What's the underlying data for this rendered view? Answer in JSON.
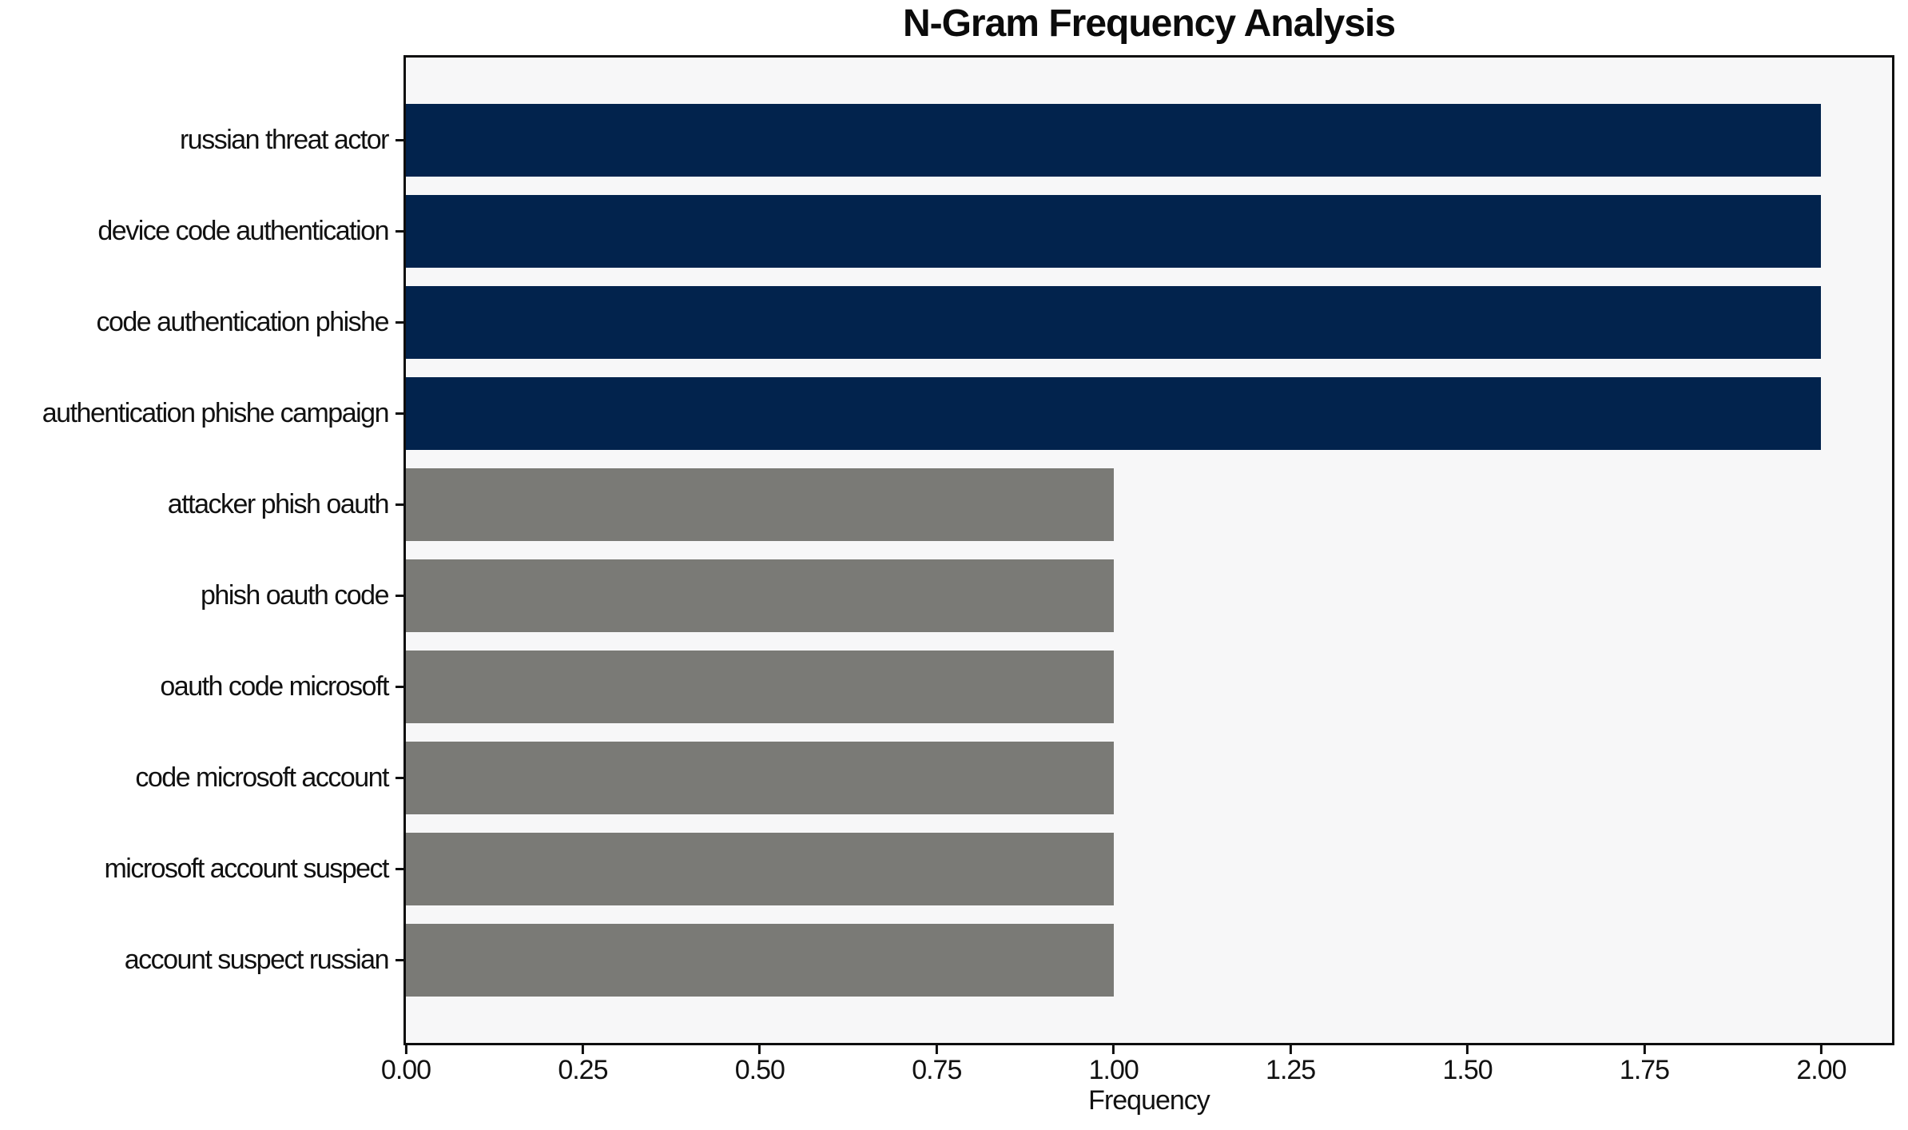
{
  "chart_data": {
    "type": "bar",
    "orientation": "horizontal",
    "title": "N-Gram Frequency Analysis",
    "xlabel": "Frequency",
    "ylabel": "",
    "categories": [
      "russian threat actor",
      "device code authentication",
      "code authentication phishe",
      "authentication phishe campaign",
      "attacker phish oauth",
      "phish oauth code",
      "oauth code microsoft",
      "code microsoft account",
      "microsoft account suspect",
      "account suspect russian"
    ],
    "values": [
      2,
      2,
      2,
      2,
      1,
      1,
      1,
      1,
      1,
      1
    ],
    "bar_colors": [
      "#02234d",
      "#02234d",
      "#02234d",
      "#02234d",
      "#7a7a76",
      "#7a7a76",
      "#7a7a76",
      "#7a7a76",
      "#7a7a76",
      "#7a7a76"
    ],
    "xlim": [
      0,
      2.1
    ],
    "xtick_values": [
      0,
      0.25,
      0.5,
      0.75,
      1.0,
      1.25,
      1.5,
      1.75,
      2.0
    ],
    "xtick_labels": [
      "0.00",
      "0.25",
      "0.50",
      "0.75",
      "1.00",
      "1.25",
      "1.50",
      "1.75",
      "2.00"
    ],
    "grid": false,
    "legend": null,
    "colors": {
      "high_freq_bar": "#02234d",
      "low_freq_bar": "#7a7a76",
      "plot_background": "#f7f7f8",
      "figure_background": "#ffffff",
      "axis": "#0d0d0d",
      "text": "#111111"
    }
  }
}
